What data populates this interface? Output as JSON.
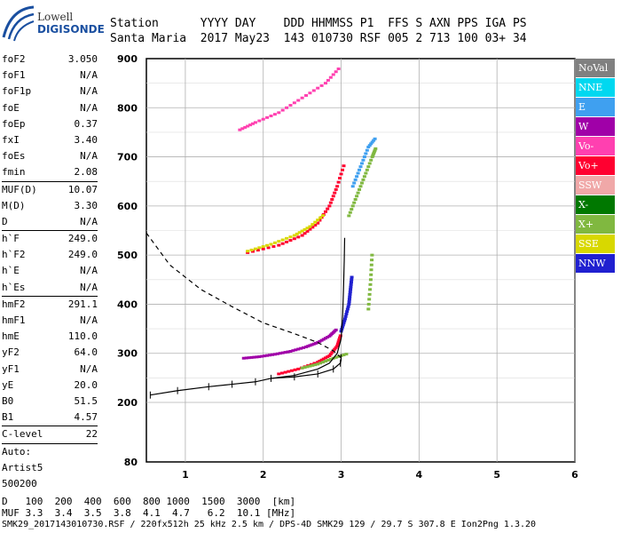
{
  "logo": {
    "line1": "Lowell",
    "line2": "DIGISONDE"
  },
  "header": {
    "labels": [
      "Station",
      "YYYY",
      "DAY",
      "DDD",
      "HHMMSS",
      "P1",
      "FFS",
      "S",
      "AXN",
      "PPS",
      "IGA",
      "PS"
    ],
    "values": [
      "Santa Maria",
      "2017",
      "May23",
      "143",
      "010730",
      "RSF",
      "005",
      "2",
      "713",
      "100",
      "03+",
      "34"
    ]
  },
  "params": [
    {
      "name": "foF2",
      "value": "3.050"
    },
    {
      "name": "foF1",
      "value": "N/A"
    },
    {
      "name": "foF1p",
      "value": "N/A"
    },
    {
      "name": "foE",
      "value": "N/A"
    },
    {
      "name": "foEp",
      "value": "0.37"
    },
    {
      "name": "fxI",
      "value": "3.40"
    },
    {
      "name": "foEs",
      "value": "N/A"
    },
    {
      "name": "fmin",
      "value": "2.08"
    },
    {
      "name": "MUF(D)",
      "value": "10.07",
      "sep": true
    },
    {
      "name": "M(D)",
      "value": "3.30"
    },
    {
      "name": "D",
      "value": "N/A"
    },
    {
      "name": "h`F",
      "value": "249.0",
      "sep": true
    },
    {
      "name": "h`F2",
      "value": "249.0"
    },
    {
      "name": "h`E",
      "value": "N/A"
    },
    {
      "name": "h`Es",
      "value": "N/A"
    },
    {
      "name": "hmF2",
      "value": "291.1",
      "sep": true
    },
    {
      "name": "hmF1",
      "value": "N/A"
    },
    {
      "name": "hmE",
      "value": "110.0"
    },
    {
      "name": "yF2",
      "value": "64.0"
    },
    {
      "name": "yF1",
      "value": "N/A"
    },
    {
      "name": "yE",
      "value": "20.0"
    },
    {
      "name": "B0",
      "value": "51.5"
    },
    {
      "name": "B1",
      "value": "4.57"
    },
    {
      "name": "C-level",
      "value": "22",
      "sep": true
    },
    {
      "name": "Auto:",
      "value": "",
      "sep": true
    },
    {
      "name": "Artist5",
      "value": ""
    },
    {
      "name": "500200",
      "value": ""
    }
  ],
  "legend": [
    {
      "label": "NoVal",
      "color": "#808080"
    },
    {
      "label": "NNE",
      "color": "#00d8f0"
    },
    {
      "label": "E",
      "color": "#3fa0f0"
    },
    {
      "label": "W",
      "color": "#a000a8"
    },
    {
      "label": "Vo-",
      "color": "#ff40b0"
    },
    {
      "label": "Vo+",
      "color": "#ff0030"
    },
    {
      "label": "SSW",
      "color": "#f0a8a8"
    },
    {
      "label": "X-",
      "color": "#007800"
    },
    {
      "label": "X+",
      "color": "#80b840"
    },
    {
      "label": "SSE",
      "color": "#d8d800"
    },
    {
      "label": "NNW",
      "color": "#2020d0"
    }
  ],
  "footer": {
    "d_label": "D",
    "d_values": [
      "100",
      "200",
      "400",
      "600",
      "800",
      "1000",
      "1500",
      "3000",
      "[km]"
    ],
    "muf_label": "MUF",
    "muf_values": [
      "3.3",
      "3.4",
      "3.5",
      "3.8",
      "4.1",
      "4.7",
      "6.2",
      "10.1",
      "[MHz]"
    ],
    "info": "SMK29_2017143010730.RSF / 220fx512h 25 kHz 2.5 km / DPS-4D SMK29 129 / 29.7 S 307.8 E",
    "version": "Ion2Png 1.3.20"
  },
  "chart_data": {
    "type": "scatter",
    "xlim": [
      0.5,
      6.0
    ],
    "ylim": [
      80,
      900
    ],
    "x_ticks": [
      "1",
      "2",
      "3",
      "4",
      "5",
      "6"
    ],
    "y_ticks": [
      "80",
      "200",
      "300",
      "400",
      "500",
      "600",
      "700",
      "800",
      "900"
    ],
    "grid": true,
    "profile_curve": {
      "x": [
        2.1,
        2.4,
        2.7,
        2.85,
        2.95,
        3.0,
        3.02,
        3.03,
        3.04,
        3.045
      ],
      "y": [
        249,
        255,
        268,
        280,
        300,
        330,
        380,
        430,
        490,
        535
      ]
    },
    "topside_dashed": {
      "x": [
        0.5,
        0.8,
        1.2,
        1.6,
        2.0,
        2.4,
        2.7,
        2.9,
        3.0
      ],
      "y": [
        545,
        480,
        430,
        395,
        362,
        340,
        322,
        305,
        291
      ]
    },
    "bottomside_extrapolation": {
      "x": [
        0.55,
        0.9,
        1.3,
        1.6,
        1.9,
        2.1,
        2.4,
        2.7,
        2.9,
        2.99,
        3.0
      ],
      "y": [
        215,
        224,
        232,
        237,
        242,
        249,
        252,
        258,
        268,
        280,
        291
      ]
    },
    "traces": [
      {
        "dir": "W",
        "x": [
          1.75,
          1.95,
          2.15,
          2.35,
          2.55,
          2.7,
          2.85,
          2.95
        ],
        "y": [
          290,
          293,
          298,
          304,
          313,
          322,
          335,
          350
        ]
      },
      {
        "dir": "Vo+",
        "x": [
          2.2,
          2.45,
          2.7,
          2.85,
          2.95,
          3.0
        ],
        "y": [
          258,
          268,
          282,
          295,
          315,
          340
        ]
      },
      {
        "dir": "NNW",
        "x": [
          3.0,
          3.05,
          3.1,
          3.12,
          3.14
        ],
        "y": [
          345,
          370,
          400,
          430,
          460
        ]
      },
      {
        "dir": "X+",
        "x": [
          2.5,
          2.7,
          2.9,
          3.1
        ],
        "y": [
          270,
          278,
          290,
          300
        ]
      },
      {
        "dir": "Vo+",
        "x": [
          1.8,
          2.2,
          2.5,
          2.7,
          2.85,
          2.95,
          3.05
        ],
        "y": [
          505,
          520,
          540,
          565,
          600,
          640,
          690
        ]
      },
      {
        "dir": "SSE",
        "x": [
          1.8,
          2.1,
          2.4,
          2.6,
          2.8
        ],
        "y": [
          508,
          522,
          540,
          558,
          585
        ]
      },
      {
        "dir": "X+",
        "x": [
          3.1,
          3.2,
          3.3,
          3.4,
          3.45
        ],
        "y": [
          580,
          620,
          660,
          700,
          720
        ]
      },
      {
        "dir": "E",
        "x": [
          3.15,
          3.25,
          3.35,
          3.45
        ],
        "y": [
          640,
          680,
          720,
          740
        ]
      },
      {
        "dir": "Vo-",
        "x": [
          1.7,
          1.9,
          2.2,
          2.5,
          2.8,
          3.0
        ],
        "y": [
          755,
          770,
          790,
          820,
          850,
          885
        ]
      },
      {
        "dir": "X+",
        "x": [
          3.35,
          3.38,
          3.4
        ],
        "y": [
          390,
          450,
          510
        ]
      }
    ]
  }
}
